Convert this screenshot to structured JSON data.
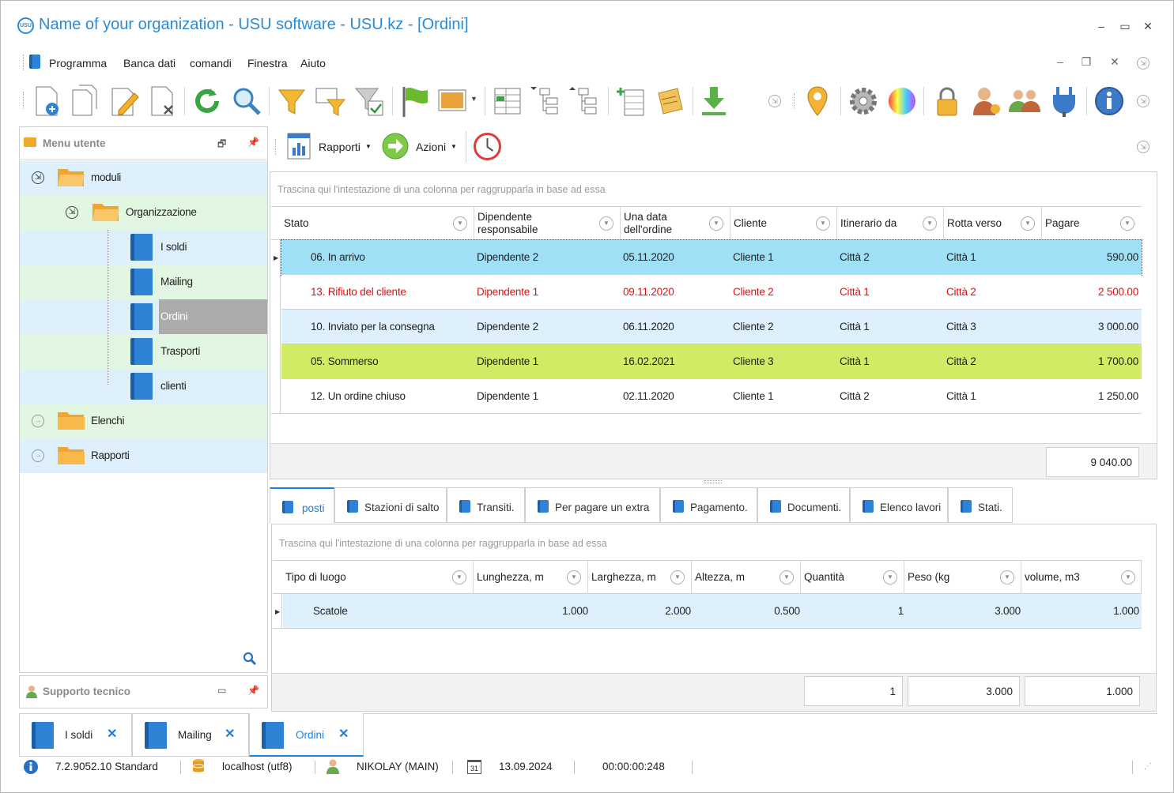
{
  "window": {
    "title": "Name of your organization - USU software - USU.kz - [Ordini]",
    "logo_text": "USU",
    "controls": {
      "minimize": "–",
      "maximize": "▭",
      "close": "✕"
    }
  },
  "menu": [
    "Programma",
    "Banca dati",
    "comandi",
    "Finestra",
    "Aiuto"
  ],
  "left_panel": {
    "title": "Menu utente",
    "tree": [
      {
        "label": "moduli"
      },
      {
        "label": "Organizzazione"
      },
      {
        "label": "I soldi"
      },
      {
        "label": "Mailing"
      },
      {
        "label": "Ordini"
      },
      {
        "label": "Trasporti"
      },
      {
        "label": "clienti"
      },
      {
        "label": "Elenchi"
      },
      {
        "label": "Rapporti"
      }
    ]
  },
  "support_panel": {
    "title": "Supporto tecnico"
  },
  "action_bar": {
    "reports": "Rapporti",
    "actions": "Azioni"
  },
  "grid1": {
    "group_hint": "Trascina qui l'intestazione di una colonna per raggrupparla in base ad essa",
    "columns": [
      "Stato",
      "Dipendente responsabile",
      "Una data dell'ordine",
      "Cliente",
      "Itinerario da",
      "Rotta verso",
      "Pagare"
    ],
    "rows": [
      [
        "06. In arrivo",
        "Dipendente 2",
        "05.11.2020",
        "Cliente 1",
        "Città 2",
        "Città 1",
        "590.00"
      ],
      [
        "13. Rifiuto del cliente",
        "Dipendente 1",
        "09.11.2020",
        "Cliente 2",
        "Città 1",
        "Città 2",
        "2 500.00"
      ],
      [
        "10. Inviato per la consegna",
        "Dipendente 2",
        "06.11.2020",
        "Cliente 2",
        "Città 1",
        "Città 3",
        "3 000.00"
      ],
      [
        "05. Sommerso",
        "Dipendente 1",
        "16.02.2021",
        "Cliente 3",
        "Città 1",
        "Città 2",
        "1 700.00"
      ],
      [
        "12. Un ordine chiuso",
        "Dipendente 1",
        "02.11.2020",
        "Cliente 1",
        "Città 2",
        "Città 1",
        "1 250.00"
      ]
    ],
    "total": "9 040.00",
    "row_colors": {
      "selected": "#9fe0f7",
      "rejected_text": "#e01010",
      "alt": "#ddf0fb",
      "green": "#d2eb65",
      "white": "#ffffff"
    }
  },
  "tabs": [
    "posti",
    "Stazioni di salto",
    "Transiti.",
    "Per pagare un extra",
    "Pagamento.",
    "Documenti.",
    "Elenco lavori",
    "Stati."
  ],
  "grid2": {
    "group_hint": "Trascina qui l'intestazione di una colonna per raggrupparla in base ad essa",
    "columns": [
      "Tipo di luogo",
      "Lunghezza, m",
      "Larghezza, m",
      "Altezza, m",
      "Quantità",
      "Peso (kg",
      "volume, m3"
    ],
    "rows": [
      [
        "Scatole",
        "1.000",
        "2.000",
        "0.500",
        "1",
        "3.000",
        "1.000"
      ]
    ],
    "totals": [
      "1",
      "3.000",
      "1.000"
    ]
  },
  "doc_tabs": [
    {
      "label": "I soldi",
      "close": "✕"
    },
    {
      "label": "Mailing",
      "close": "✕"
    },
    {
      "label": "Ordini",
      "close": "✕"
    }
  ],
  "status": {
    "version": "7.2.9052.10 Standard",
    "db": "localhost (utf8)",
    "user": "NIKOLAY (MAIN)",
    "calendar_day": "31",
    "date": "13.09.2024",
    "timer": "00:00:00:248"
  }
}
